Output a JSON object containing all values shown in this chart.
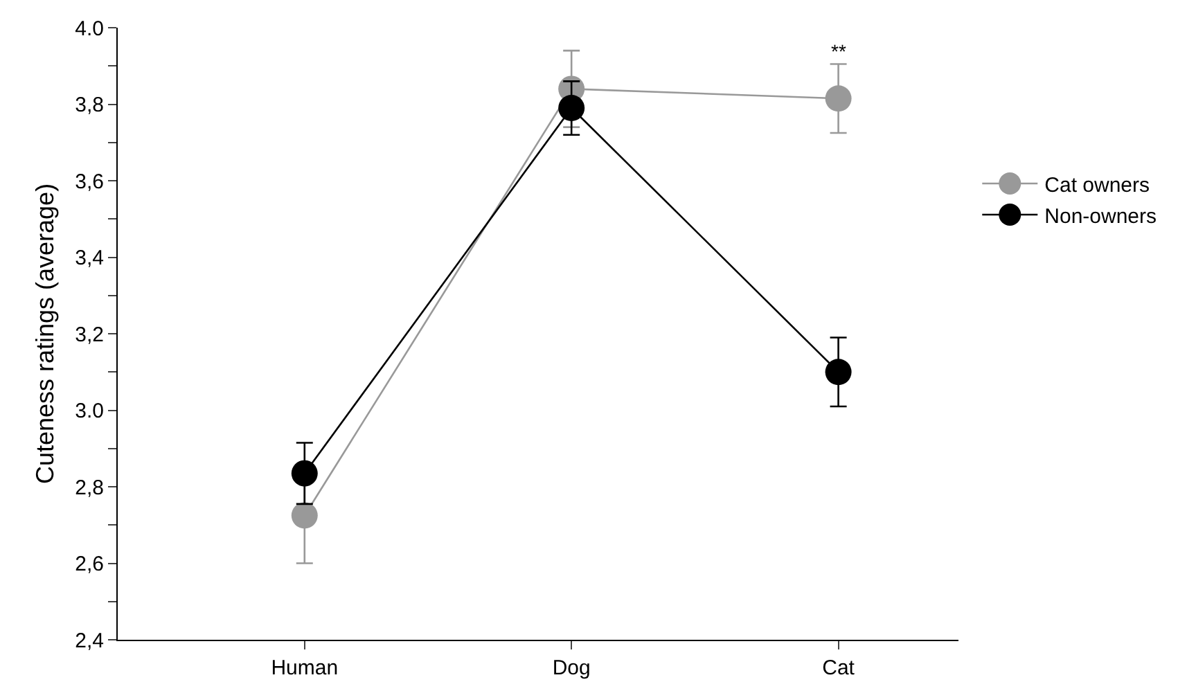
{
  "chart_data": {
    "type": "line",
    "ylabel": "Cuteness ratings (average)",
    "categories": [
      "Human",
      "Dog",
      "Cat"
    ],
    "series": [
      {
        "name": "Cat owners",
        "color": "#999999",
        "values": [
          2.725,
          3.84,
          3.815
        ],
        "errors": [
          0.125,
          0.1,
          0.09
        ]
      },
      {
        "name": "Non-owners",
        "color": "#000000",
        "values": [
          2.835,
          3.79,
          3.1
        ],
        "errors": [
          0.08,
          0.07,
          0.09
        ]
      }
    ],
    "ylim": [
      2.4,
      4.0
    ],
    "yticks": [
      {
        "value": 2.4,
        "label": "2,4"
      },
      {
        "value": 2.5,
        "label": null
      },
      {
        "value": 2.6,
        "label": "2,6"
      },
      {
        "value": 2.7,
        "label": null
      },
      {
        "value": 2.8,
        "label": "2,8"
      },
      {
        "value": 2.9,
        "label": null
      },
      {
        "value": 3.0,
        "label": "3.0"
      },
      {
        "value": 3.1,
        "label": null
      },
      {
        "value": 3.2,
        "label": "3,2"
      },
      {
        "value": 3.3,
        "label": null
      },
      {
        "value": 3.4,
        "label": "3,4"
      },
      {
        "value": 3.5,
        "label": null
      },
      {
        "value": 3.6,
        "label": "3,6"
      },
      {
        "value": 3.7,
        "label": null
      },
      {
        "value": 3.8,
        "label": "3,8"
      },
      {
        "value": 3.9,
        "label": null
      },
      {
        "value": 4.0,
        "label": "4.0"
      }
    ],
    "annotations": [
      "**"
    ],
    "grid": false,
    "legend": "right",
    "marker": "circle",
    "line_style": "solid"
  }
}
